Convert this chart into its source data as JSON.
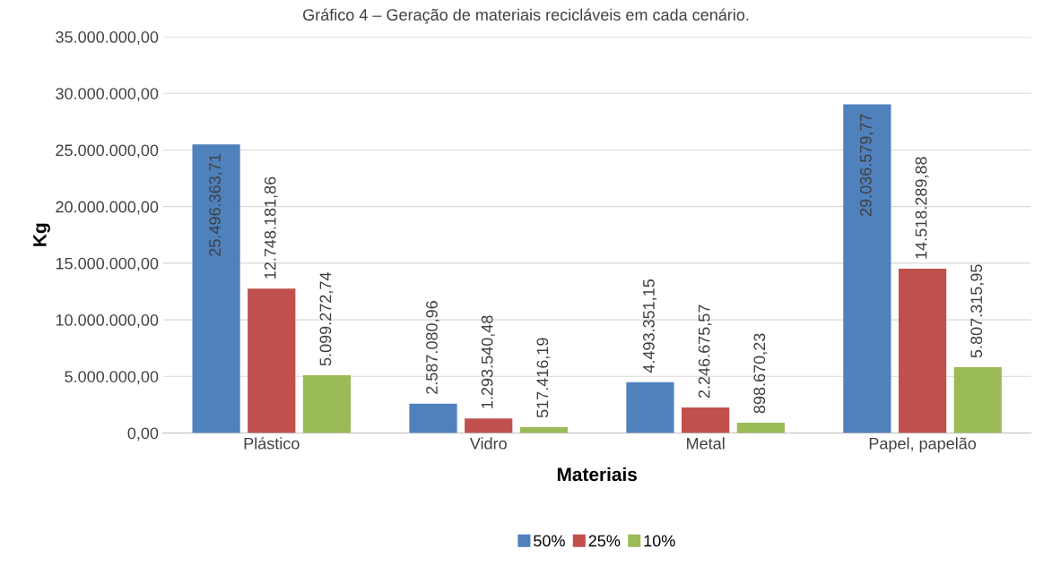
{
  "chart_data": {
    "type": "bar",
    "title": "Gráfico 4 – Geração de materiais recicláveis em cada cenário.",
    "xlabel": "Materiais",
    "ylabel": "Kg",
    "categories": [
      "Plástico",
      "Vidro",
      "Metal",
      "Papel, papelão"
    ],
    "series": [
      {
        "name": "50%",
        "color": "#4f81bd",
        "values": [
          25496363.71,
          2587080.96,
          4493351.15,
          29036579.77
        ],
        "value_labels": [
          "25.496.363,71",
          "2.587.080,96",
          "4.493.351,15",
          "29.036.579,77"
        ]
      },
      {
        "name": "25%",
        "color": "#c0504d",
        "values": [
          12748181.86,
          1293540.48,
          2246675.57,
          14518289.88
        ],
        "value_labels": [
          "12.748.181,86",
          "1.293.540,48",
          "2.246.675,57",
          "14.518.289,88"
        ]
      },
      {
        "name": "10%",
        "color": "#9bbb59",
        "values": [
          5099272.74,
          517416.19,
          898670.23,
          5807315.95
        ],
        "value_labels": [
          "5.099.272,74",
          "517.416,19",
          "898.670,23",
          "5.807.315,95"
        ]
      }
    ],
    "ylim": [
      0,
      35000000
    ],
    "yticks": [
      {
        "value": 0,
        "label": "0,00"
      },
      {
        "value": 5000000,
        "label": "5.000.000,00"
      },
      {
        "value": 10000000,
        "label": "10.000.000,00"
      },
      {
        "value": 15000000,
        "label": "15.000.000,00"
      },
      {
        "value": 20000000,
        "label": "20.000.000,00"
      },
      {
        "value": 25000000,
        "label": "25.000.000,00"
      },
      {
        "value": 30000000,
        "label": "30.000.000,00"
      },
      {
        "value": 35000000,
        "label": "35.000.000,00"
      }
    ],
    "grid": "y",
    "legend": "bottom"
  }
}
